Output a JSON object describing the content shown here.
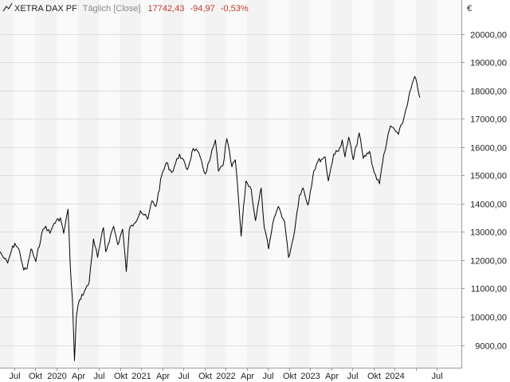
{
  "header": {
    "icon": "line-chart-icon",
    "instrument": "XETRA DAX PF",
    "interval": "Täglich [Close]",
    "last_price": "17742,43",
    "change_abs": "-94,97",
    "change_pct": "-0,53%",
    "change_color": "#c0392b",
    "muted_color": "#888888"
  },
  "chart_data": {
    "type": "line",
    "title": "XETRA DAX PF",
    "unit": "€",
    "line_color": "#000000",
    "band_colors": [
      "#f3f3f3",
      "#fafafa"
    ],
    "ylim": [
      8200,
      21200
    ],
    "y_ticks": [
      9000,
      10000,
      11000,
      12000,
      13000,
      14000,
      15000,
      16000,
      17000,
      18000,
      19000,
      20000
    ],
    "y_tick_labels": [
      "9000,00",
      "10000,00",
      "11000,00",
      "12000,00",
      "13000,00",
      "14000,00",
      "15000,00",
      "16000,00",
      "17000,00",
      "18000,00",
      "19000,00",
      "20000,00"
    ],
    "xlim": [
      "2019-05-01",
      "2024-10-15"
    ],
    "x_ticks": [
      {
        "date": "2019-07-01",
        "label": "Jul"
      },
      {
        "date": "2019-10-01",
        "label": "Okt"
      },
      {
        "date": "2020-01-01",
        "label": "2020"
      },
      {
        "date": "2020-04-01",
        "label": "Apr"
      },
      {
        "date": "2020-07-01",
        "label": "Jul"
      },
      {
        "date": "2020-10-01",
        "label": "Okt"
      },
      {
        "date": "2021-01-01",
        "label": "2021"
      },
      {
        "date": "2021-04-01",
        "label": "Apr"
      },
      {
        "date": "2021-07-01",
        "label": "Jul"
      },
      {
        "date": "2021-10-01",
        "label": "Okt"
      },
      {
        "date": "2022-01-01",
        "label": "2022"
      },
      {
        "date": "2022-04-01",
        "label": "Apr"
      },
      {
        "date": "2022-07-01",
        "label": "Jul"
      },
      {
        "date": "2022-10-01",
        "label": "Okt"
      },
      {
        "date": "2023-01-01",
        "label": "2023"
      },
      {
        "date": "2023-04-01",
        "label": "Apr"
      },
      {
        "date": "2023-07-01",
        "label": "Jul"
      },
      {
        "date": "2023-10-01",
        "label": "Okt"
      },
      {
        "date": "2024-01-01",
        "label": "2024"
      },
      {
        "date": "2024-04-01",
        "label": ""
      },
      {
        "date": "2024-07-01",
        "label": "Jul"
      }
    ],
    "series": [
      {
        "name": "XETRA DAX PF",
        "points": [
          [
            "2019-05-01",
            12300
          ],
          [
            "2019-05-20",
            12050
          ],
          [
            "2019-06-03",
            11900
          ],
          [
            "2019-06-20",
            12350
          ],
          [
            "2019-07-04",
            12600
          ],
          [
            "2019-07-25",
            12300
          ],
          [
            "2019-08-12",
            11650
          ],
          [
            "2019-08-26",
            11700
          ],
          [
            "2019-09-12",
            12400
          ],
          [
            "2019-10-03",
            11950
          ],
          [
            "2019-10-28",
            12950
          ],
          [
            "2019-11-15",
            13200
          ],
          [
            "2019-12-03",
            12950
          ],
          [
            "2019-12-20",
            13300
          ],
          [
            "2020-01-17",
            13500
          ],
          [
            "2020-01-31",
            12950
          ],
          [
            "2020-02-19",
            13800
          ],
          [
            "2020-02-28",
            11900
          ],
          [
            "2020-03-09",
            10600
          ],
          [
            "2020-03-18",
            8450
          ],
          [
            "2020-03-26",
            10000
          ],
          [
            "2020-04-08",
            10600
          ],
          [
            "2020-04-30",
            10900
          ],
          [
            "2020-05-20",
            11200
          ],
          [
            "2020-06-08",
            12750
          ],
          [
            "2020-06-26",
            12100
          ],
          [
            "2020-07-21",
            13150
          ],
          [
            "2020-07-31",
            12300
          ],
          [
            "2020-08-20",
            12850
          ],
          [
            "2020-09-03",
            13200
          ],
          [
            "2020-09-21",
            12550
          ],
          [
            "2020-10-12",
            13100
          ],
          [
            "2020-10-28",
            11600
          ],
          [
            "2020-11-10",
            13100
          ],
          [
            "2020-12-01",
            13300
          ],
          [
            "2020-12-28",
            13750
          ],
          [
            "2021-01-29",
            13450
          ],
          [
            "2021-02-16",
            14100
          ],
          [
            "2021-03-05",
            13900
          ],
          [
            "2021-03-30",
            15000
          ],
          [
            "2021-04-19",
            15450
          ],
          [
            "2021-05-12",
            15100
          ],
          [
            "2021-06-15",
            15750
          ],
          [
            "2021-07-19",
            15200
          ],
          [
            "2021-08-13",
            15950
          ],
          [
            "2021-09-01",
            15850
          ],
          [
            "2021-10-04",
            15050
          ],
          [
            "2021-10-22",
            15500
          ],
          [
            "2021-11-17",
            16250
          ],
          [
            "2021-11-30",
            15150
          ],
          [
            "2021-12-20",
            15350
          ],
          [
            "2022-01-05",
            16300
          ],
          [
            "2022-01-27",
            15300
          ],
          [
            "2022-02-11",
            15550
          ],
          [
            "2022-02-24",
            14250
          ],
          [
            "2022-03-08",
            12850
          ],
          [
            "2022-03-29",
            14800
          ],
          [
            "2022-04-21",
            14500
          ],
          [
            "2022-05-09",
            13400
          ],
          [
            "2022-06-03",
            14550
          ],
          [
            "2022-06-16",
            13150
          ],
          [
            "2022-07-05",
            12400
          ],
          [
            "2022-07-29",
            13500
          ],
          [
            "2022-08-16",
            13900
          ],
          [
            "2022-09-12",
            13350
          ],
          [
            "2022-09-29",
            12100
          ],
          [
            "2022-10-20",
            12800
          ],
          [
            "2022-11-15",
            14300
          ],
          [
            "2022-12-01",
            14550
          ],
          [
            "2022-12-22",
            13950
          ],
          [
            "2023-01-16",
            15150
          ],
          [
            "2023-02-03",
            15500
          ],
          [
            "2023-03-06",
            15650
          ],
          [
            "2023-03-20",
            14800
          ],
          [
            "2023-04-12",
            15750
          ],
          [
            "2023-05-03",
            15850
          ],
          [
            "2023-05-19",
            16250
          ],
          [
            "2023-05-31",
            15650
          ],
          [
            "2023-06-16",
            16350
          ],
          [
            "2023-07-06",
            15550
          ],
          [
            "2023-07-31",
            16500
          ],
          [
            "2023-08-18",
            15600
          ],
          [
            "2023-09-14",
            15850
          ],
          [
            "2023-10-04",
            15100
          ],
          [
            "2023-10-27",
            14700
          ],
          [
            "2023-11-15",
            15750
          ],
          [
            "2023-12-14",
            16750
          ],
          [
            "2024-01-17",
            16450
          ],
          [
            "2024-02-09",
            17000
          ],
          [
            "2024-03-01",
            17750
          ],
          [
            "2024-03-27",
            18500
          ],
          [
            "2024-04-10",
            18050
          ],
          [
            "2024-04-19",
            17750
          ]
        ]
      }
    ]
  }
}
